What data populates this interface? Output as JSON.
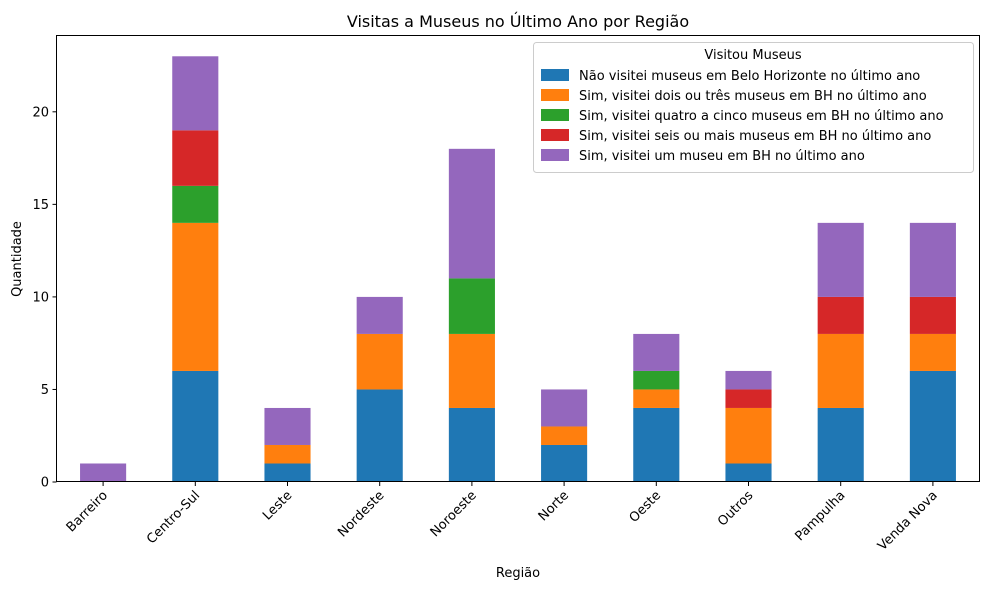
{
  "chart_data": {
    "type": "bar",
    "stacked": true,
    "title": "Visitas a Museus no Último Ano por Região",
    "xlabel": "Região",
    "ylabel": "Quantidade",
    "ylim": [
      0,
      24.15
    ],
    "yticks": [
      0,
      5,
      10,
      15,
      20
    ],
    "categories": [
      "Barreiro",
      "Centro-Sul",
      "Leste",
      "Nordeste",
      "Noroeste",
      "Norte",
      "Oeste",
      "Outros",
      "Pampulha",
      "Venda Nova"
    ],
    "legend_title": "Visitou Museus",
    "legend_position": "top-right",
    "grid": false,
    "series": [
      {
        "name": "Não visitei museus em Belo Horizonte no último ano",
        "color": "#1f77b4",
        "values": [
          0,
          6,
          1,
          5,
          4,
          2,
          4,
          1,
          4,
          6
        ]
      },
      {
        "name": "Sim, visitei dois ou três museus em BH no último ano",
        "color": "#ff7f0e",
        "values": [
          0,
          8,
          1,
          3,
          4,
          1,
          1,
          3,
          4,
          2
        ]
      },
      {
        "name": "Sim, visitei quatro a cinco museus em BH no último ano",
        "color": "#2ca02c",
        "values": [
          0,
          2,
          0,
          0,
          3,
          0,
          1,
          0,
          0,
          0
        ]
      },
      {
        "name": "Sim, visitei seis ou mais museus em BH no último ano",
        "color": "#d62728",
        "values": [
          0,
          3,
          0,
          0,
          0,
          0,
          0,
          1,
          2,
          2
        ]
      },
      {
        "name": "Sim, visitei um museu em BH no último ano",
        "color": "#9467bd",
        "values": [
          1,
          4,
          2,
          2,
          7,
          2,
          2,
          1,
          4,
          4
        ]
      }
    ]
  }
}
